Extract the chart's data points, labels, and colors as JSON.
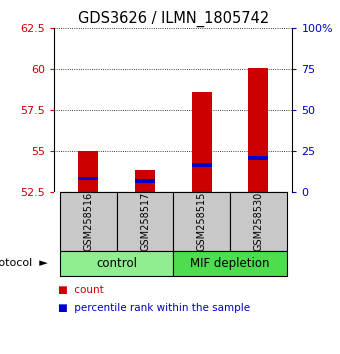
{
  "title": "GDS3626 / ILMN_1805742",
  "samples": [
    "GSM258516",
    "GSM258517",
    "GSM258515",
    "GSM258530"
  ],
  "groups": [
    {
      "name": "control",
      "indices": [
        0,
        1
      ],
      "color": "#90EE90"
    },
    {
      "name": "MIF depletion",
      "indices": [
        2,
        3
      ],
      "color": "#4EDD4E"
    }
  ],
  "bar_bottom": 52.5,
  "red_tops": [
    55.0,
    53.85,
    58.6,
    60.1
  ],
  "blue_tops": [
    53.35,
    53.2,
    54.15,
    54.6
  ],
  "ylim_left": [
    52.5,
    62.5
  ],
  "ylim_right": [
    0,
    100
  ],
  "yticks_left": [
    52.5,
    55.0,
    57.5,
    60.0,
    62.5
  ],
  "ytick_labels_left": [
    "52.5",
    "55",
    "57.5",
    "60",
    "62.5"
  ],
  "yticks_right": [
    0,
    25,
    50,
    75,
    100
  ],
  "ytick_labels_right": [
    "0",
    "25",
    "50",
    "75",
    "100%"
  ],
  "red_color": "#CC0000",
  "blue_color": "#0000CC",
  "bar_width": 0.35,
  "protocol_label": "protocol",
  "legend_count": "count",
  "legend_percentile": "percentile rank within the sample",
  "left_tick_color": "#CC0000",
  "right_tick_color": "#0000CC",
  "group_label_fontsize": 8.5,
  "sample_label_fontsize": 7,
  "title_fontsize": 10.5,
  "legend_fontsize": 7.5
}
